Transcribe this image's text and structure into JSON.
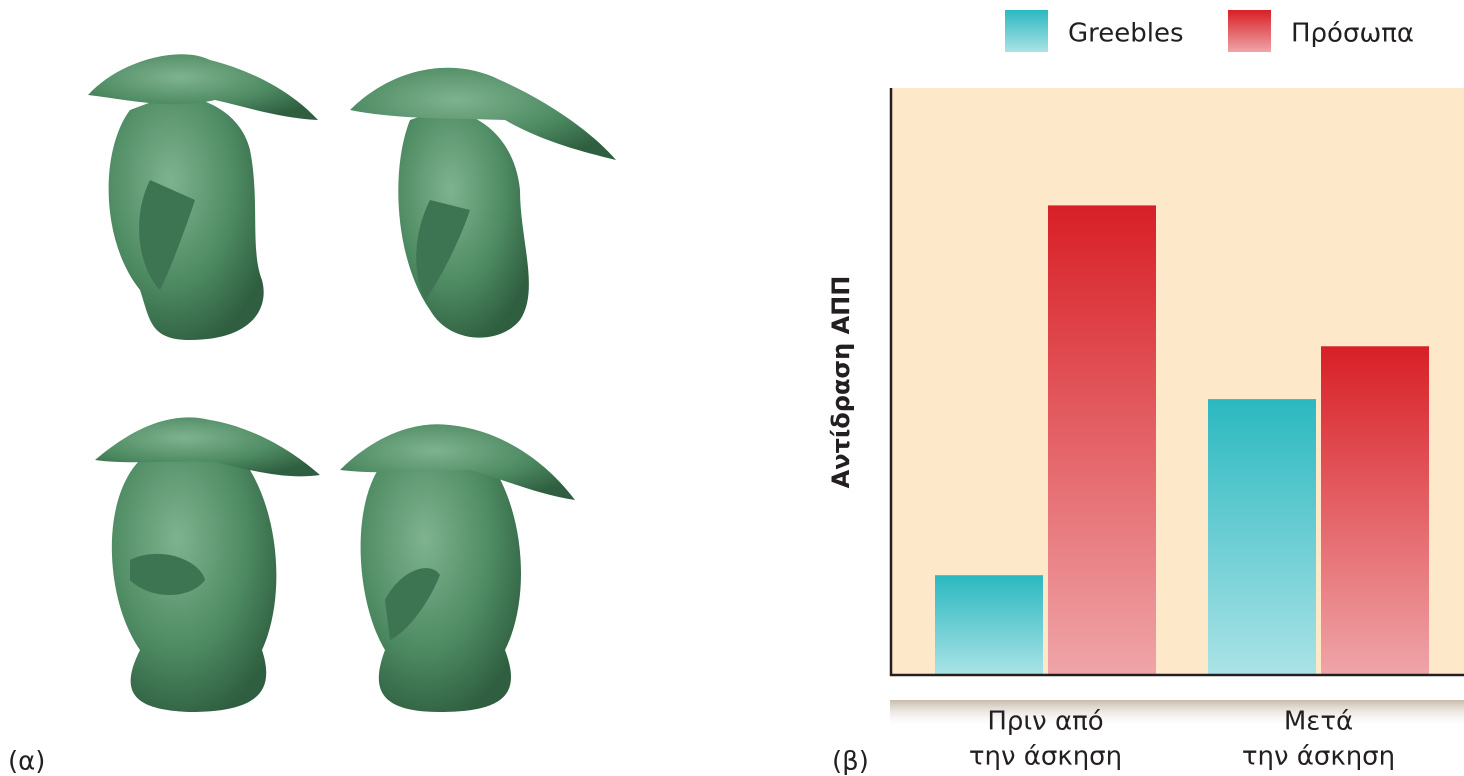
{
  "panel_a_label": "(α)",
  "chart_data": {
    "type": "bar",
    "panel_label": "(β)",
    "y_label": "Αντίδραση ΑΠΠ",
    "categories": [
      [
        "Πριν από",
        "την άσκηση"
      ],
      [
        "Μετά",
        "την άσκηση"
      ]
    ],
    "series": [
      {
        "name": "Greebles",
        "color": "#2bb8c0",
        "values": [
          17,
          47
        ]
      },
      {
        "name": "Πρόσωπα",
        "color": "#d81f26",
        "values": [
          80,
          56
        ]
      }
    ],
    "ylim": [
      0,
      100
    ],
    "background": "#fde9c9"
  }
}
